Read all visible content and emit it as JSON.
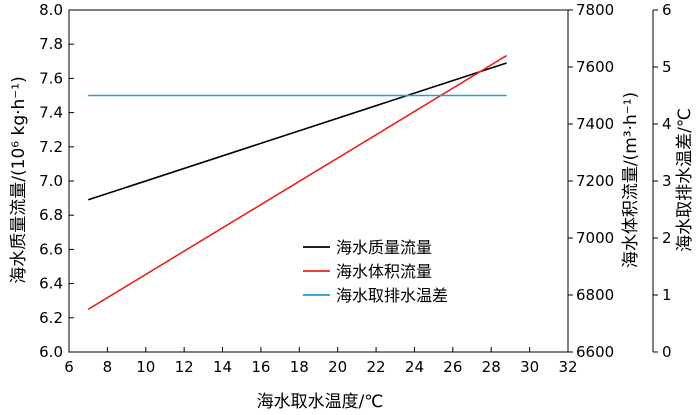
{
  "chart_data": {
    "type": "line",
    "title": "",
    "xlabel": "海水取水温度/℃",
    "xlim": [
      6,
      32
    ],
    "xticks": [
      "6",
      "8",
      "10",
      "12",
      "14",
      "16",
      "18",
      "20",
      "22",
      "24",
      "26",
      "28",
      "30",
      "32"
    ],
    "axes": {
      "y_left": {
        "label": "海水质量流量/(10⁶ kg·h⁻¹)",
        "ylim": [
          6.0,
          8.0
        ],
        "ticks": [
          "6.0",
          "6.2",
          "6.4",
          "6.6",
          "6.8",
          "7.0",
          "7.2",
          "7.4",
          "7.6",
          "7.8",
          "8.0"
        ]
      },
      "y_right1": {
        "label": "海水体积流量/(m³·h⁻¹)",
        "ylim": [
          6600,
          7800
        ],
        "ticks": [
          "6600",
          "6800",
          "7000",
          "7200",
          "7400",
          "7600",
          "7800"
        ]
      },
      "y_right2": {
        "label": "海水取排水温差/℃",
        "ylim": [
          0,
          6
        ],
        "ticks": [
          "0",
          "1",
          "2",
          "3",
          "4",
          "5",
          "6"
        ]
      }
    },
    "series": [
      {
        "name": "海水质量流量",
        "axis": "y_left",
        "color": "#000000",
        "x": [
          7,
          28.8
        ],
        "y": [
          6.89,
          7.69
        ]
      },
      {
        "name": "海水体积流量",
        "axis": "y_right1",
        "color": "#e8231b",
        "x": [
          7,
          28.8
        ],
        "y": [
          6750,
          7640
        ]
      },
      {
        "name": "海水取排水温差",
        "axis": "y_right2",
        "color": "#1aa3d6",
        "x": [
          7,
          28.8
        ],
        "y": [
          4.5,
          4.5
        ]
      }
    ],
    "legend": {
      "position": "lower-right"
    },
    "grid": false
  }
}
